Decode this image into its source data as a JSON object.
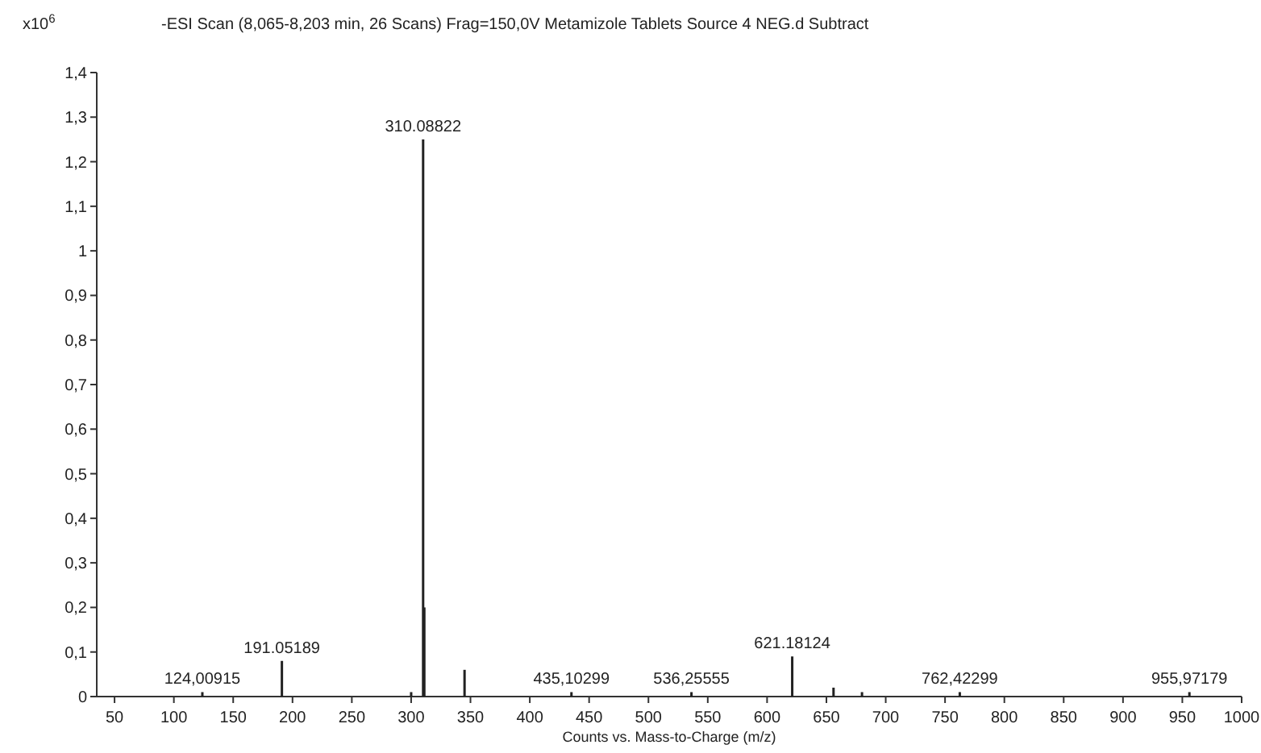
{
  "chart_data": {
    "type": "bar",
    "title": "-ESI Scan (8,065-8,203 min, 26 Scans) Frag=150,0V Metamizole Tablets Source 4 NEG.d  Subtract",
    "xlabel": "Counts vs. Mass-to-Charge (m/z)",
    "x": [
      124.00915,
      191.05189,
      300,
      310.08822,
      311.09,
      345,
      435.10299,
      536.25555,
      621.18124,
      656,
      680,
      762.42299,
      955.97179
    ],
    "values": [
      0.01,
      0.08,
      0.01,
      1.25,
      0.2,
      0.06,
      0.01,
      0.01,
      0.09,
      0.02,
      0.01,
      0.01,
      0.01
    ],
    "color": "#222222",
    "xlim": [
      35,
      1000
    ],
    "xticks": [
      50,
      100,
      150,
      200,
      250,
      300,
      350,
      400,
      450,
      500,
      550,
      600,
      650,
      700,
      750,
      800,
      850,
      900,
      950,
      1000
    ],
    "ylim": [
      0,
      1.4
    ],
    "yticks": [
      0,
      {
        "value": 0.1,
        "label": "0,1"
      },
      {
        "value": 0.2,
        "label": "0,2"
      },
      {
        "value": 0.3,
        "label": "0,3"
      },
      {
        "value": 0.4,
        "label": "0,4"
      },
      {
        "value": 0.5,
        "label": "0,5"
      },
      {
        "value": 0.6,
        "label": "0,6"
      },
      {
        "value": 0.7,
        "label": "0,7"
      },
      {
        "value": 0.8,
        "label": "0,8"
      },
      {
        "value": 0.9,
        "label": "0,9"
      },
      1,
      {
        "value": 1.1,
        "label": "1,1"
      },
      {
        "value": 1.2,
        "label": "1,2"
      },
      {
        "value": 1.3,
        "label": "1,3"
      },
      {
        "value": 1.4,
        "label": "1,4"
      }
    ],
    "annotations": [
      "x10$^{6}$",
      {
        "text": "124,00915",
        "x": 124.00915,
        "y": 0.01
      },
      {
        "text": "191.05189",
        "x": 191.05189,
        "y": 0.08
      },
      {
        "text": "310.08822",
        "x": 310.08822,
        "y": 1.25
      },
      {
        "text": "435,10299",
        "x": 435.10299,
        "y": 0.01
      },
      {
        "text": "536,25555",
        "x": 536.25555,
        "y": 0.01
      },
      {
        "text": "621.18124",
        "x": 621.18124,
        "y": 0.09
      },
      {
        "text": "762,42299",
        "x": 762.42299,
        "y": 0.01
      },
      {
        "text": "955,97179",
        "x": 955.97179,
        "y": 0.01
      }
    ]
  }
}
